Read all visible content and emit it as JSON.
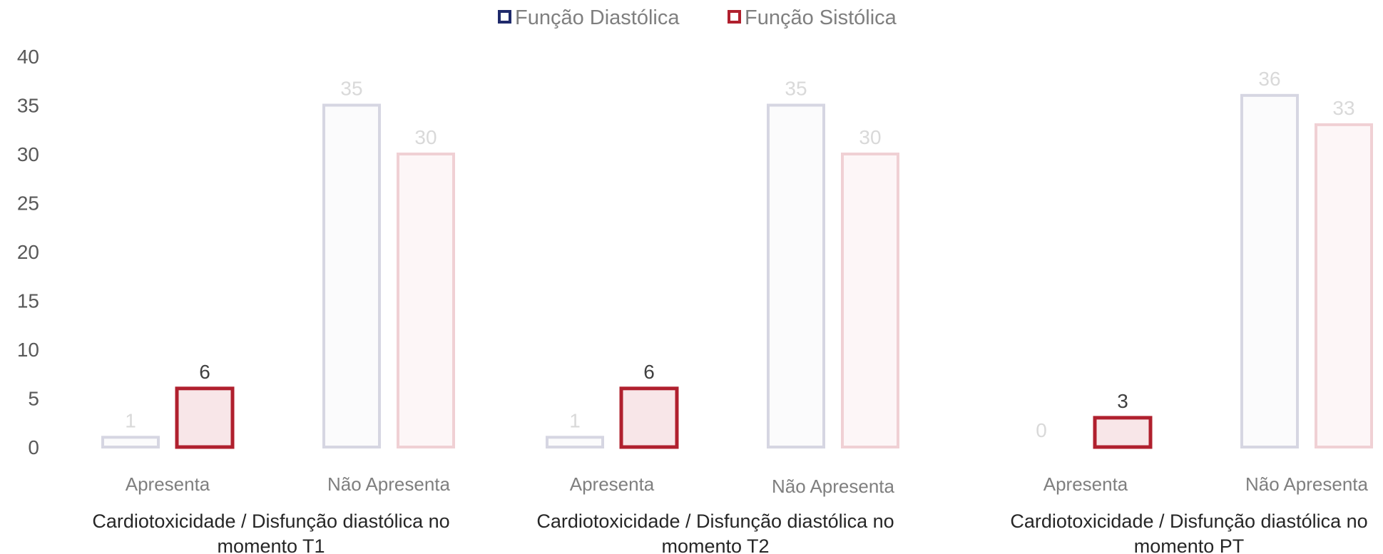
{
  "chart_data": {
    "type": "bar",
    "ylim": [
      0,
      40
    ],
    "yticks": [
      0,
      5,
      10,
      15,
      20,
      25,
      30,
      35,
      40
    ],
    "legend_position": "top",
    "grid": false,
    "series": [
      {
        "name": "Função Diastólica",
        "color": "#1f2a6b"
      },
      {
        "name": "Função Sistólica",
        "color": "#b0202e"
      }
    ],
    "groups": [
      {
        "label_lines": [
          "Cardiotoxicidade / Disfunção diastólica no",
          "momento T1"
        ],
        "categories": [
          {
            "label": "Apresenta",
            "values": [
              1,
              6
            ],
            "highlight": "Função Sistólica"
          },
          {
            "label": "Não Apresenta",
            "values": [
              35,
              30
            ]
          }
        ]
      },
      {
        "label_lines": [
          "Cardiotoxicidade / Disfunção diastólica no",
          "momento T2"
        ],
        "categories": [
          {
            "label": "Apresenta",
            "values": [
              1,
              6
            ],
            "highlight": "Função Sistólica"
          },
          {
            "label": "Não Apresenta",
            "values": [
              35,
              30
            ]
          }
        ]
      },
      {
        "label_lines": [
          "Cardiotoxicidade / Disfunção diastólica no",
          "momento PT"
        ],
        "categories": [
          {
            "label": "Apresenta",
            "values": [
              0,
              3
            ],
            "highlight": "Função Sistólica"
          },
          {
            "label": "Não Apresenta",
            "values": [
              36,
              33
            ]
          }
        ]
      }
    ]
  }
}
